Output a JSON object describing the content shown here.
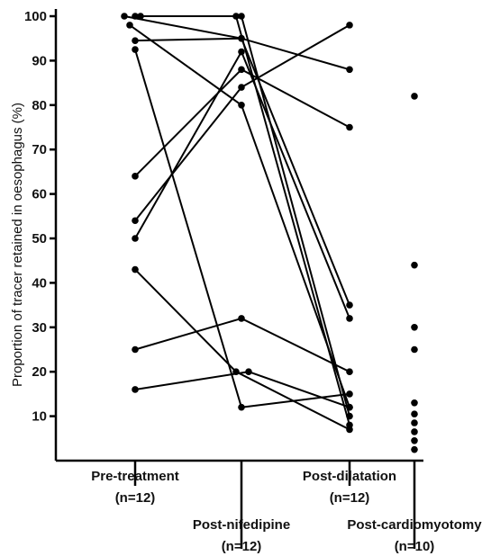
{
  "chart_data": {
    "type": "scatter",
    "title": "",
    "ylabel": "Proportion of tracer retained in oesophagus (%)",
    "ylim": [
      0,
      100
    ],
    "yticks": [
      10,
      20,
      30,
      40,
      50,
      60,
      70,
      80,
      90,
      100
    ],
    "groups": [
      {
        "label": "Pre-treatment",
        "n": "(n=12)"
      },
      {
        "label": "Post-nifedipine",
        "n": "(n=12)"
      },
      {
        "label": "Post-dilatation",
        "n": "(n=12)"
      },
      {
        "label": "Post-cardiomyotomy",
        "n": "(n=10)"
      }
    ],
    "patients": [
      {
        "values": [
          100,
          100,
          10
        ]
      },
      {
        "values": [
          100,
          100,
          8
        ]
      },
      {
        "values": [
          100,
          95,
          35
        ]
      },
      {
        "values": [
          98,
          80,
          12
        ]
      },
      {
        "values": [
          94.5,
          95,
          88
        ]
      },
      {
        "values": [
          92.5,
          12,
          15
        ]
      },
      {
        "values": [
          64,
          88,
          75
        ]
      },
      {
        "values": [
          54,
          84,
          98
        ]
      },
      {
        "values": [
          50,
          92,
          32
        ]
      },
      {
        "values": [
          43,
          20,
          7
        ]
      },
      {
        "values": [
          25,
          32,
          20
        ]
      },
      {
        "values": [
          16,
          20,
          12
        ]
      }
    ],
    "cardiomyotomy": [
      82,
      44,
      30,
      25,
      13,
      10.5,
      8.5,
      6.5,
      4.5,
      2.5
    ]
  }
}
